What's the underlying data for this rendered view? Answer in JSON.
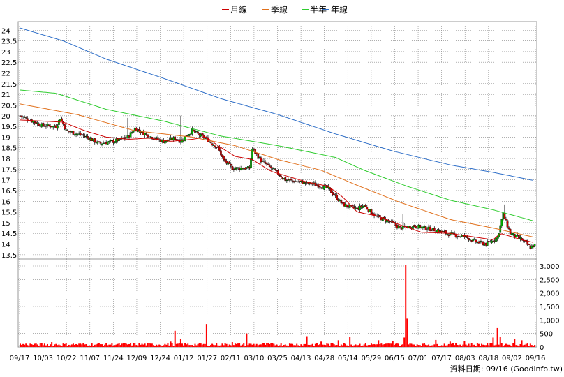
{
  "legend": [
    {
      "label": "月線",
      "color": "#cc0000"
    },
    {
      "label": "季線",
      "color": "#e0701c"
    },
    {
      "label": "半年",
      "color": "#2ecc2e"
    },
    {
      "label": "年線",
      "color": "#2f6fc8"
    }
  ],
  "footer": "資料日期: 09/16 (Goodinfo.tw)",
  "colors": {
    "up": "#00b000",
    "down": "#cc0000",
    "volume": "#ff0000",
    "grid": "#808080"
  },
  "chart_data": [
    {
      "type": "candlestick",
      "title": "",
      "ylim": [
        13.3,
        24.4
      ],
      "yticks": [
        "24",
        "23.5",
        "23",
        "22.5",
        "22",
        "21.5",
        "21",
        "20.5",
        "20",
        "19.5",
        "19",
        "18.5",
        "18",
        "17.5",
        "17",
        "16.5",
        "16",
        "15.5",
        "15",
        "14.5",
        "14",
        "13.5"
      ],
      "ytick_values": [
        24,
        23.5,
        23,
        22.5,
        22,
        21.5,
        21,
        20.5,
        20,
        19.5,
        19,
        18.5,
        18,
        17.5,
        17,
        16.5,
        16,
        15.5,
        15,
        14.5,
        14,
        13.5
      ],
      "x_dates": [
        "09/17",
        "10/03",
        "10/22",
        "11/07",
        "11/24",
        "12/09",
        "12/24",
        "01/12",
        "01/27",
        "02/11",
        "03/10",
        "03/25",
        "04/13",
        "04/28",
        "05/14",
        "05/29",
        "06/15",
        "07/01",
        "07/17",
        "08/03",
        "08/18",
        "09/02",
        "09/16"
      ],
      "grid": true,
      "legend_position": "top",
      "series": [
        {
          "name": "月線",
          "points": [
            [
              0,
              19.8
            ],
            [
              30,
              19.7
            ],
            [
              45,
              19.3
            ],
            [
              60,
              19.0
            ],
            [
              75,
              18.9
            ],
            [
              90,
              18.95
            ],
            [
              105,
              18.8
            ],
            [
              120,
              18.9
            ],
            [
              130,
              19.0
            ],
            [
              138,
              18.6
            ],
            [
              150,
              18.1
            ],
            [
              162,
              17.95
            ],
            [
              175,
              17.4
            ],
            [
              185,
              17.2
            ],
            [
              200,
              16.9
            ],
            [
              215,
              16.7
            ],
            [
              225,
              16.2
            ],
            [
              235,
              15.5
            ],
            [
              250,
              15.3
            ],
            [
              265,
              14.9
            ],
            [
              280,
              14.55
            ],
            [
              300,
              14.5
            ],
            [
              315,
              14.35
            ],
            [
              330,
              14.2
            ],
            [
              335,
              14.5
            ],
            [
              350,
              14.2
            ],
            [
              360,
              14.05
            ]
          ]
        },
        {
          "name": "季線",
          "points": [
            [
              0,
              20.55
            ],
            [
              40,
              20.05
            ],
            [
              80,
              19.3
            ],
            [
              120,
              19.0
            ],
            [
              150,
              18.6
            ],
            [
              180,
              17.95
            ],
            [
              210,
              17.45
            ],
            [
              235,
              16.75
            ],
            [
              265,
              15.95
            ],
            [
              300,
              15.15
            ],
            [
              330,
              14.75
            ],
            [
              360,
              14.3
            ]
          ]
        },
        {
          "name": "半年",
          "points": [
            [
              0,
              21.2
            ],
            [
              25,
              21.05
            ],
            [
              60,
              20.3
            ],
            [
              100,
              19.75
            ],
            [
              140,
              19.05
            ],
            [
              180,
              18.6
            ],
            [
              220,
              18.05
            ],
            [
              240,
              17.45
            ],
            [
              270,
              16.7
            ],
            [
              300,
              16.05
            ],
            [
              330,
              15.6
            ],
            [
              360,
              15.05
            ]
          ]
        },
        {
          "name": "年線",
          "points": [
            [
              0,
              24.1
            ],
            [
              30,
              23.5
            ],
            [
              60,
              22.65
            ],
            [
              100,
              21.75
            ],
            [
              140,
              20.8
            ],
            [
              180,
              20.05
            ],
            [
              220,
              19.15
            ],
            [
              260,
              18.35
            ],
            [
              300,
              17.7
            ],
            [
              330,
              17.35
            ],
            [
              360,
              16.95
            ]
          ]
        }
      ],
      "candles": {
        "count": 360,
        "close_path": [
          [
            0,
            20.0
          ],
          [
            15,
            19.55
          ],
          [
            25,
            19.5
          ],
          [
            28,
            19.9
          ],
          [
            32,
            19.3
          ],
          [
            45,
            19.05
          ],
          [
            55,
            18.7
          ],
          [
            65,
            18.8
          ],
          [
            75,
            19.0
          ],
          [
            80,
            19.4
          ],
          [
            90,
            19.05
          ],
          [
            100,
            18.8
          ],
          [
            108,
            18.95
          ],
          [
            112,
            18.8
          ],
          [
            115,
            19.0
          ],
          [
            120,
            19.3
          ],
          [
            130,
            18.9
          ],
          [
            138,
            18.5
          ],
          [
            142,
            17.9
          ],
          [
            148,
            17.55
          ],
          [
            160,
            17.55
          ],
          [
            162,
            18.45
          ],
          [
            168,
            17.9
          ],
          [
            172,
            17.7
          ],
          [
            178,
            17.4
          ],
          [
            185,
            17.0
          ],
          [
            195,
            16.9
          ],
          [
            205,
            16.8
          ],
          [
            215,
            16.6
          ],
          [
            225,
            15.85
          ],
          [
            235,
            15.65
          ],
          [
            240,
            15.8
          ],
          [
            248,
            15.3
          ],
          [
            258,
            15.05
          ],
          [
            265,
            14.75
          ],
          [
            275,
            14.85
          ],
          [
            290,
            14.65
          ],
          [
            300,
            14.45
          ],
          [
            310,
            14.35
          ],
          [
            318,
            14.1
          ],
          [
            325,
            14.0
          ],
          [
            333,
            14.3
          ],
          [
            337,
            15.4
          ],
          [
            342,
            14.5
          ],
          [
            350,
            14.2
          ],
          [
            356,
            13.85
          ],
          [
            359,
            13.95
          ]
        ],
        "spikes": [
          [
            27,
            20.0
          ],
          [
            75,
            19.9
          ],
          [
            112,
            20.0
          ],
          [
            161,
            18.6
          ],
          [
            253,
            15.7
          ],
          [
            267,
            15.4
          ],
          [
            338,
            15.85
          ]
        ]
      }
    },
    {
      "type": "bar",
      "title": "",
      "ylim": [
        0,
        3000
      ],
      "yticks": [
        "3,000",
        "2,500",
        "2,000",
        "1,500",
        "1,000",
        "500",
        "0"
      ],
      "ytick_values": [
        3000,
        2500,
        2000,
        1500,
        1000,
        500,
        0
      ],
      "bars": {
        "count": 360,
        "base": 90,
        "peaks": [
          [
            22,
            180
          ],
          [
            105,
            200
          ],
          [
            108,
            600
          ],
          [
            112,
            300
          ],
          [
            130,
            850
          ],
          [
            148,
            180
          ],
          [
            158,
            500
          ],
          [
            200,
            400
          ],
          [
            210,
            200
          ],
          [
            222,
            250
          ],
          [
            230,
            380
          ],
          [
            250,
            250
          ],
          [
            260,
            220
          ],
          [
            268,
            350
          ],
          [
            269,
            3050
          ],
          [
            270,
            1050
          ],
          [
            290,
            260
          ],
          [
            300,
            200
          ],
          [
            310,
            220
          ],
          [
            330,
            350
          ],
          [
            333,
            700
          ],
          [
            335,
            380
          ],
          [
            345,
            300
          ],
          [
            350,
            250
          ]
        ]
      }
    }
  ]
}
